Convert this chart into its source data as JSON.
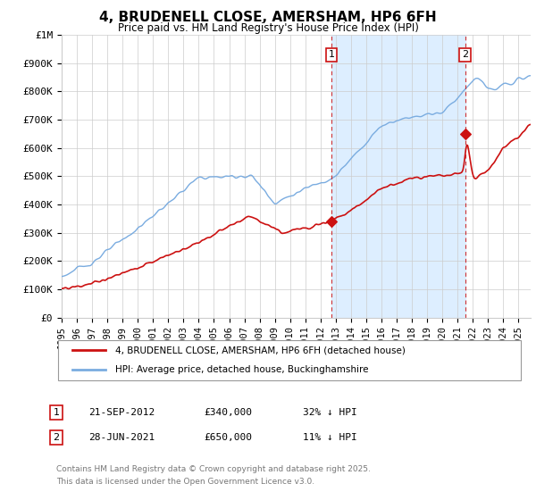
{
  "title": "4, BRUDENELL CLOSE, AMERSHAM, HP6 6FH",
  "subtitle": "Price paid vs. HM Land Registry's House Price Index (HPI)",
  "ylim": [
    0,
    1000000
  ],
  "xlim_start": 1995.0,
  "xlim_end": 2025.8,
  "yticks": [
    0,
    100000,
    200000,
    300000,
    400000,
    500000,
    600000,
    700000,
    800000,
    900000,
    1000000
  ],
  "ytick_labels": [
    "£0",
    "£100K",
    "£200K",
    "£300K",
    "£400K",
    "£500K",
    "£600K",
    "£700K",
    "£800K",
    "£900K",
    "£1M"
  ],
  "hpi_color": "#7aace0",
  "price_color": "#cc1111",
  "shade_color": "#ddeeff",
  "vline_color": "#cc1111",
  "box_color": "#cc1111",
  "transaction1": {
    "year": 2012.72,
    "price": 340000,
    "label": "1",
    "date": "21-SEP-2012",
    "amount": "£340,000",
    "pct": "32% ↓ HPI"
  },
  "transaction2": {
    "year": 2021.49,
    "price": 650000,
    "label": "2",
    "date": "28-JUN-2021",
    "amount": "£650,000",
    "pct": "11% ↓ HPI"
  },
  "legend1": "4, BRUDENELL CLOSE, AMERSHAM, HP6 6FH (detached house)",
  "legend2": "HPI: Average price, detached house, Buckinghamshire",
  "footer1": "Contains HM Land Registry data © Crown copyright and database right 2025.",
  "footer2": "This data is licensed under the Open Government Licence v3.0."
}
